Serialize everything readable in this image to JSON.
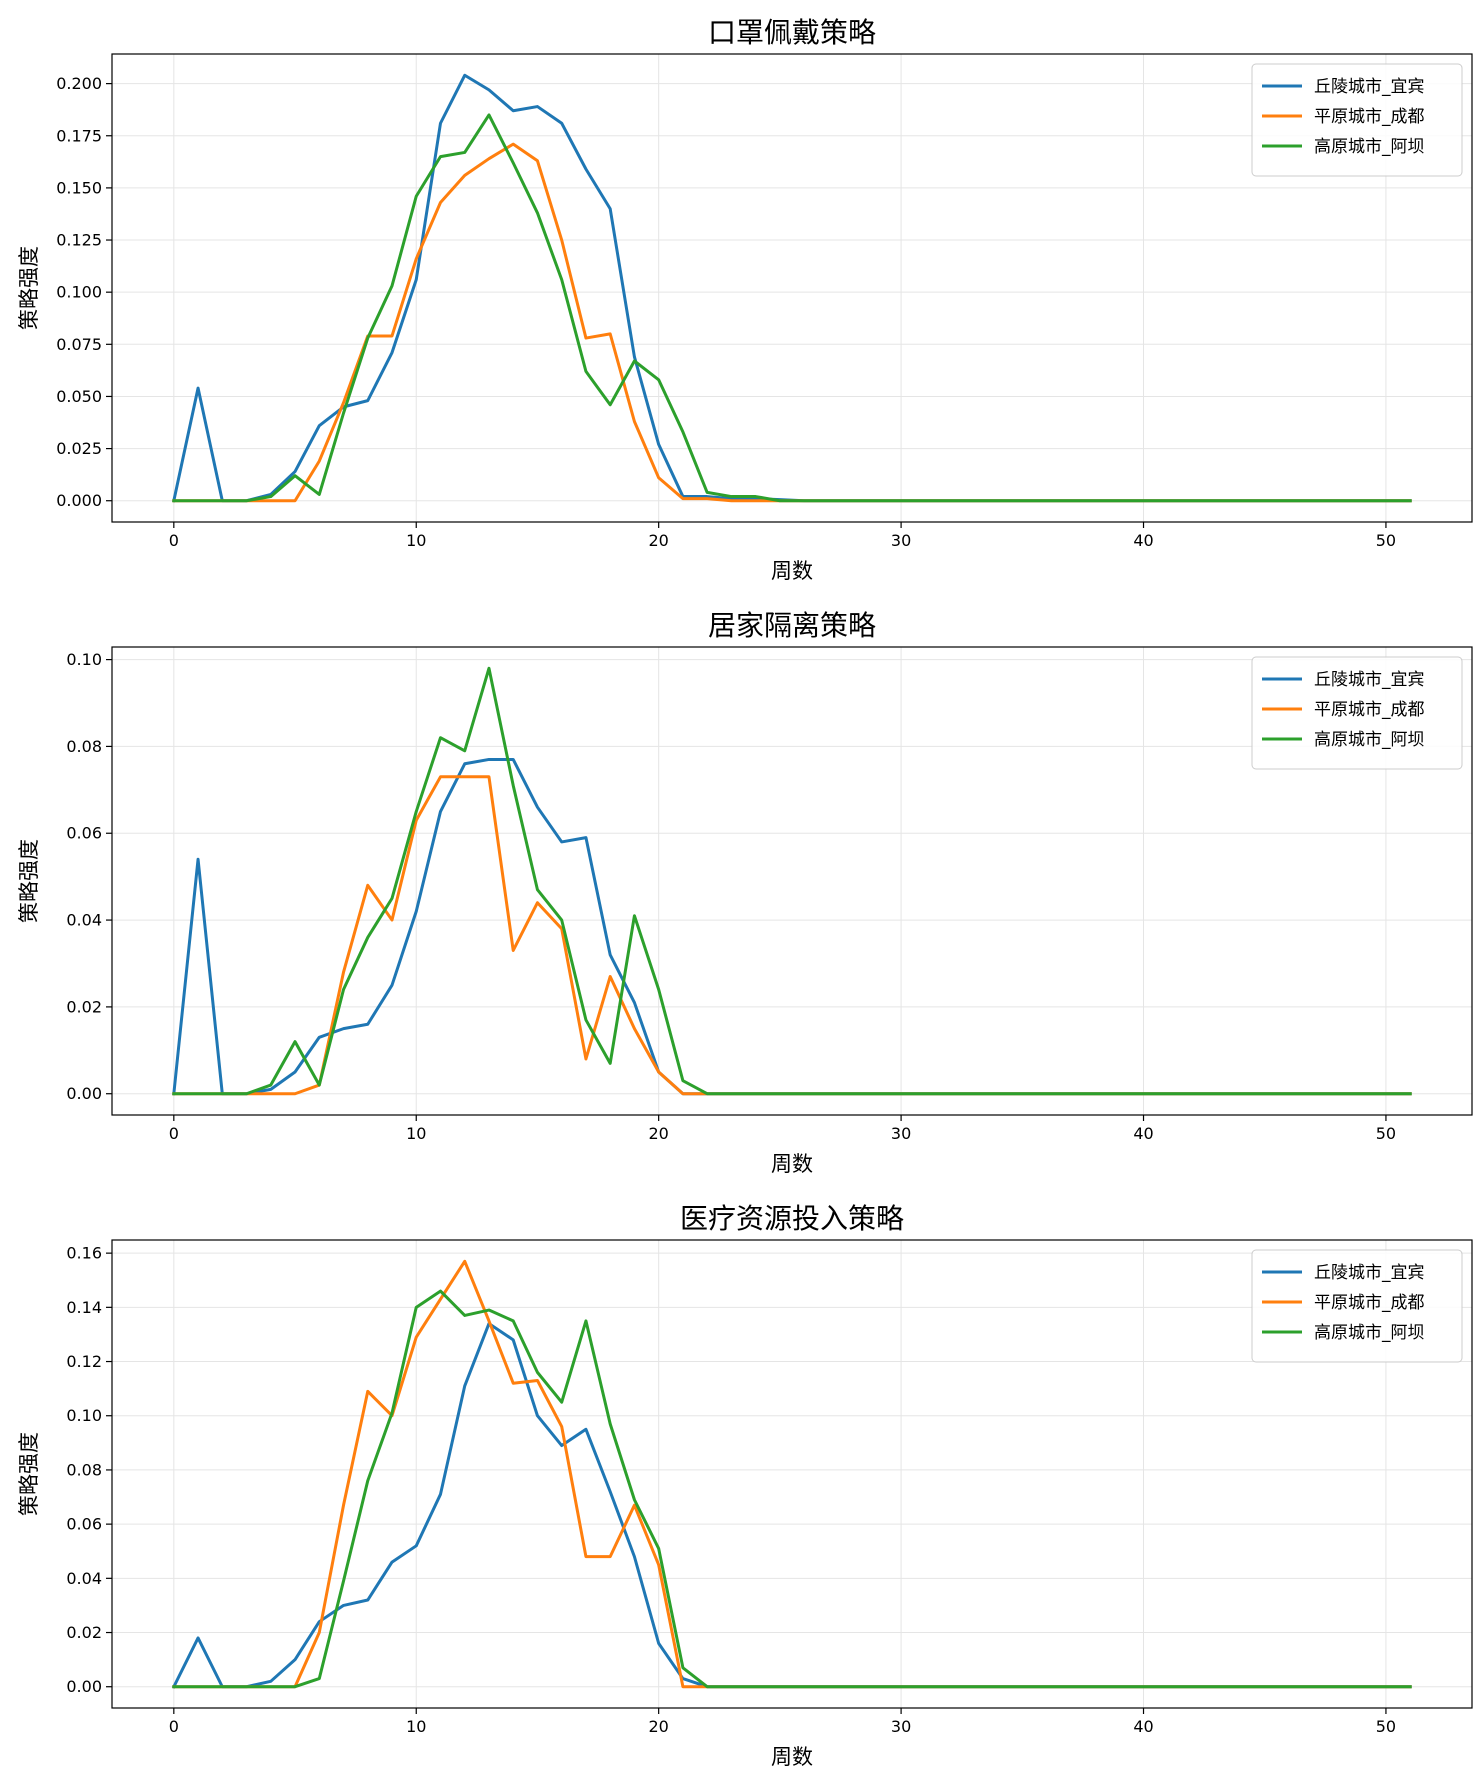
{
  "chart_data": [
    {
      "type": "line",
      "title": "口罩佩戴策略",
      "xlabel": "周数",
      "ylabel": "策略强度",
      "xlim": [
        -2.55,
        53.55
      ],
      "ylim": [
        -0.0102,
        0.2142
      ],
      "xticks": [
        0,
        10,
        20,
        30,
        40,
        50
      ],
      "xtick_labels": [
        "0",
        "10",
        "20",
        "30",
        "40",
        "50"
      ],
      "yticks": [
        0,
        0.025,
        0.05,
        0.075,
        0.1,
        0.125,
        0.15,
        0.175,
        0.2
      ],
      "ytick_labels": [
        "0.000",
        "0.025",
        "0.050",
        "0.075",
        "0.100",
        "0.125",
        "0.150",
        "0.175",
        "0.200"
      ],
      "grid": true,
      "legend_position": "top-right",
      "series": [
        {
          "name": "丘陵城市_宜宾",
          "color": "#1f77b4",
          "values": [
            0,
            0.054,
            0,
            0,
            0.003,
            0.014,
            0.036,
            0.045,
            0.048,
            0.071,
            0.106,
            0.181,
            0.204,
            0.197,
            0.187,
            0.189,
            0.181,
            0.159,
            0.14,
            0.069,
            0.027,
            0.002,
            0.002,
            0.001,
            0.001,
            0.0005,
            0,
            0,
            0,
            0,
            0,
            0,
            0,
            0,
            0,
            0,
            0,
            0,
            0,
            0,
            0,
            0,
            0,
            0,
            0,
            0,
            0,
            0,
            0,
            0,
            0,
            0
          ]
        },
        {
          "name": "平原城市_成都",
          "color": "#ff7f0e",
          "values": [
            0,
            0,
            0,
            0,
            0,
            0,
            0.019,
            0.047,
            0.079,
            0.079,
            0.116,
            0.143,
            0.156,
            0.164,
            0.171,
            0.163,
            0.125,
            0.078,
            0.08,
            0.038,
            0.011,
            0.001,
            0.001,
            0,
            0,
            0,
            0,
            0,
            0,
            0,
            0,
            0,
            0,
            0,
            0,
            0,
            0,
            0,
            0,
            0,
            0,
            0,
            0,
            0,
            0,
            0,
            0,
            0,
            0,
            0,
            0,
            0
          ]
        },
        {
          "name": "高原城市_阿坝",
          "color": "#2ca02c",
          "values": [
            0,
            0,
            0,
            0,
            0.002,
            0.012,
            0.003,
            0.042,
            0.078,
            0.103,
            0.146,
            0.165,
            0.167,
            0.185,
            0.162,
            0.138,
            0.106,
            0.062,
            0.046,
            0.067,
            0.058,
            0.033,
            0.004,
            0.002,
            0.002,
            0,
            0,
            0,
            0,
            0,
            0,
            0,
            0,
            0,
            0,
            0,
            0,
            0,
            0,
            0,
            0,
            0,
            0,
            0,
            0,
            0,
            0,
            0,
            0,
            0,
            0,
            0
          ]
        }
      ]
    },
    {
      "type": "line",
      "title": "居家隔离策略",
      "xlabel": "周数",
      "ylabel": "策略强度",
      "xlim": [
        -2.55,
        53.55
      ],
      "ylim": [
        -0.0049,
        0.1029
      ],
      "xticks": [
        0,
        10,
        20,
        30,
        40,
        50
      ],
      "xtick_labels": [
        "0",
        "10",
        "20",
        "30",
        "40",
        "50"
      ],
      "yticks": [
        0,
        0.02,
        0.04,
        0.06,
        0.08,
        0.1
      ],
      "ytick_labels": [
        "0.00",
        "0.02",
        "0.04",
        "0.06",
        "0.08",
        "0.10"
      ],
      "grid": true,
      "legend_position": "top-right",
      "series": [
        {
          "name": "丘陵城市_宜宾",
          "color": "#1f77b4",
          "values": [
            0,
            0.054,
            0,
            0,
            0.001,
            0.005,
            0.013,
            0.015,
            0.016,
            0.025,
            0.042,
            0.065,
            0.076,
            0.077,
            0.077,
            0.066,
            0.058,
            0.059,
            0.032,
            0.021,
            0.005,
            0,
            0,
            0,
            0,
            0,
            0,
            0,
            0,
            0,
            0,
            0,
            0,
            0,
            0,
            0,
            0,
            0,
            0,
            0,
            0,
            0,
            0,
            0,
            0,
            0,
            0,
            0,
            0,
            0,
            0,
            0
          ]
        },
        {
          "name": "平原城市_成都",
          "color": "#ff7f0e",
          "values": [
            0,
            0,
            0,
            0,
            0,
            0,
            0.002,
            0.028,
            0.048,
            0.04,
            0.063,
            0.073,
            0.073,
            0.073,
            0.033,
            0.044,
            0.038,
            0.008,
            0.027,
            0.015,
            0.005,
            0,
            0,
            0,
            0,
            0,
            0,
            0,
            0,
            0,
            0,
            0,
            0,
            0,
            0,
            0,
            0,
            0,
            0,
            0,
            0,
            0,
            0,
            0,
            0,
            0,
            0,
            0,
            0,
            0,
            0,
            0
          ]
        },
        {
          "name": "高原城市_阿坝",
          "color": "#2ca02c",
          "values": [
            0,
            0,
            0,
            0,
            0.002,
            0.012,
            0.002,
            0.024,
            0.036,
            0.045,
            0.065,
            0.082,
            0.079,
            0.098,
            0.071,
            0.047,
            0.04,
            0.017,
            0.007,
            0.041,
            0.024,
            0.003,
            0,
            0,
            0,
            0,
            0,
            0,
            0,
            0,
            0,
            0,
            0,
            0,
            0,
            0,
            0,
            0,
            0,
            0,
            0,
            0,
            0,
            0,
            0,
            0,
            0,
            0,
            0,
            0,
            0,
            0
          ]
        }
      ]
    },
    {
      "type": "line",
      "title": "医疗资源投入策略",
      "xlabel": "周数",
      "ylabel": "策略强度",
      "xlim": [
        -2.55,
        53.55
      ],
      "ylim": [
        -0.00785,
        0.16485
      ],
      "xticks": [
        0,
        10,
        20,
        30,
        40,
        50
      ],
      "xtick_labels": [
        "0",
        "10",
        "20",
        "30",
        "40",
        "50"
      ],
      "yticks": [
        0,
        0.02,
        0.04,
        0.06,
        0.08,
        0.1,
        0.12,
        0.14,
        0.16
      ],
      "ytick_labels": [
        "0.00",
        "0.02",
        "0.04",
        "0.06",
        "0.08",
        "0.10",
        "0.12",
        "0.14",
        "0.16"
      ],
      "grid": true,
      "legend_position": "top-right",
      "series": [
        {
          "name": "丘陵城市_宜宾",
          "color": "#1f77b4",
          "values": [
            0,
            0.018,
            0,
            0,
            0.002,
            0.01,
            0.024,
            0.03,
            0.032,
            0.046,
            0.052,
            0.071,
            0.111,
            0.134,
            0.128,
            0.1,
            0.089,
            0.095,
            0.072,
            0.048,
            0.016,
            0.003,
            0,
            0,
            0,
            0,
            0,
            0,
            0,
            0,
            0,
            0,
            0,
            0,
            0,
            0,
            0,
            0,
            0,
            0,
            0,
            0,
            0,
            0,
            0,
            0,
            0,
            0,
            0,
            0,
            0,
            0
          ]
        },
        {
          "name": "平原城市_成都",
          "color": "#ff7f0e",
          "values": [
            0,
            0,
            0,
            0,
            0,
            0,
            0.02,
            0.067,
            0.109,
            0.1,
            0.129,
            0.143,
            0.157,
            0.135,
            0.112,
            0.113,
            0.096,
            0.048,
            0.048,
            0.067,
            0.045,
            0,
            0,
            0,
            0,
            0,
            0,
            0,
            0,
            0,
            0,
            0,
            0,
            0,
            0,
            0,
            0,
            0,
            0,
            0,
            0,
            0,
            0,
            0,
            0,
            0,
            0,
            0,
            0,
            0,
            0,
            0
          ]
        },
        {
          "name": "高原城市_阿坝",
          "color": "#2ca02c",
          "values": [
            0,
            0,
            0,
            0,
            0,
            0,
            0.003,
            0.039,
            0.076,
            0.101,
            0.14,
            0.146,
            0.137,
            0.139,
            0.135,
            0.116,
            0.105,
            0.135,
            0.097,
            0.069,
            0.051,
            0.007,
            0,
            0,
            0,
            0,
            0,
            0,
            0,
            0,
            0,
            0,
            0,
            0,
            0,
            0,
            0,
            0,
            0,
            0,
            0,
            0,
            0,
            0,
            0,
            0,
            0,
            0,
            0,
            0,
            0,
            0
          ]
        }
      ]
    }
  ]
}
